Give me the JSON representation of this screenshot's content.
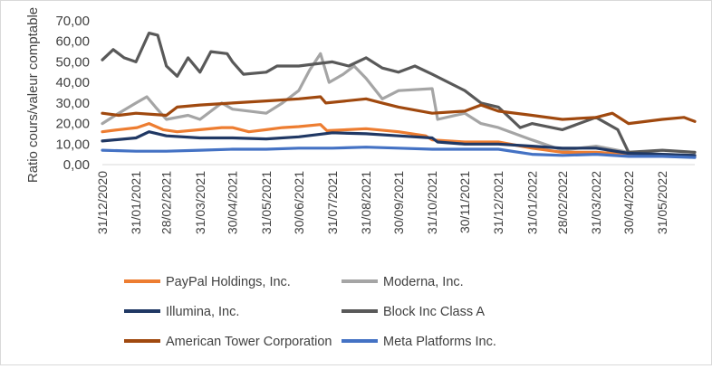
{
  "chart_data": {
    "type": "line",
    "title": "",
    "xlabel": "",
    "ylabel": "Ratio cours/valeur comptable",
    "ylim": [
      0,
      70
    ],
    "yticks": [
      "0,00",
      "10,00",
      "20,00",
      "30,00",
      "40,00",
      "50,00",
      "60,00",
      "70,00"
    ],
    "xlim": [
      "31/12/2020",
      "30/06/2022"
    ],
    "xticks": [
      "31/12/2020",
      "31/01/2021",
      "28/02/2021",
      "31/03/2021",
      "30/04/2021",
      "31/05/2021",
      "30/06/2021",
      "31/07/2021",
      "31/08/2021",
      "30/09/2021",
      "31/10/2021",
      "30/11/2021",
      "31/12/2021",
      "31/01/2022",
      "28/02/2022",
      "31/03/2022",
      "30/04/2022",
      "31/05/2022"
    ],
    "grid": "none",
    "legend": "bottom",
    "series": [
      {
        "name": "PayPal Holdings, Inc.",
        "color": "#ed7d31",
        "points": [
          [
            "31/12/2020",
            16
          ],
          [
            "15/01/2021",
            17
          ],
          [
            "01/02/2021",
            18
          ],
          [
            "12/02/2021",
            20
          ],
          [
            "25/02/2021",
            17
          ],
          [
            "10/03/2021",
            16
          ],
          [
            "31/03/2021",
            17
          ],
          [
            "20/04/2021",
            18
          ],
          [
            "30/04/2021",
            18
          ],
          [
            "15/05/2021",
            16
          ],
          [
            "31/05/2021",
            17
          ],
          [
            "15/06/2021",
            18
          ],
          [
            "30/06/2021",
            18.5
          ],
          [
            "20/07/2021",
            19.5
          ],
          [
            "26/07/2021",
            16.5
          ],
          [
            "31/08/2021",
            17.5
          ],
          [
            "30/09/2021",
            16
          ],
          [
            "25/10/2021",
            14
          ],
          [
            "31/10/2021",
            12
          ],
          [
            "30/11/2021",
            11
          ],
          [
            "31/12/2021",
            11
          ],
          [
            "31/01/2022",
            8
          ],
          [
            "28/02/2022",
            6
          ],
          [
            "31/03/2022",
            6
          ],
          [
            "30/04/2022",
            5
          ],
          [
            "31/05/2022",
            4.5
          ],
          [
            "30/06/2022",
            4
          ]
        ]
      },
      {
        "name": "Moderna, Inc.",
        "color": "#a5a5a5",
        "points": [
          [
            "31/12/2020",
            20
          ],
          [
            "15/01/2021",
            25
          ],
          [
            "31/01/2021",
            30
          ],
          [
            "10/02/2021",
            33
          ],
          [
            "18/02/2021",
            28
          ],
          [
            "28/02/2021",
            22
          ],
          [
            "20/03/2021",
            24
          ],
          [
            "31/03/2021",
            22
          ],
          [
            "20/04/2021",
            30
          ],
          [
            "30/04/2021",
            27
          ],
          [
            "31/05/2021",
            25
          ],
          [
            "15/06/2021",
            30
          ],
          [
            "30/06/2021",
            36
          ],
          [
            "10/07/2021",
            46
          ],
          [
            "20/07/2021",
            54
          ],
          [
            "28/07/2021",
            40
          ],
          [
            "10/08/2021",
            44
          ],
          [
            "20/08/2021",
            48
          ],
          [
            "31/08/2021",
            42
          ],
          [
            "15/09/2021",
            32
          ],
          [
            "30/09/2021",
            36
          ],
          [
            "31/10/2021",
            37
          ],
          [
            "05/11/2021",
            22
          ],
          [
            "30/11/2021",
            25
          ],
          [
            "15/12/2021",
            20
          ],
          [
            "31/12/2021",
            18
          ],
          [
            "31/01/2022",
            12
          ],
          [
            "28/02/2022",
            7
          ],
          [
            "31/03/2022",
            9
          ],
          [
            "30/04/2022",
            6
          ],
          [
            "31/05/2022",
            5
          ],
          [
            "30/06/2022",
            4.5
          ]
        ]
      },
      {
        "name": "Illumina, Inc.",
        "color": "#203864",
        "points": [
          [
            "31/12/2020",
            11.5
          ],
          [
            "31/01/2021",
            13
          ],
          [
            "12/02/2021",
            16
          ],
          [
            "28/02/2021",
            14
          ],
          [
            "31/03/2021",
            13
          ],
          [
            "30/04/2021",
            13
          ],
          [
            "31/05/2021",
            12.5
          ],
          [
            "30/06/2021",
            13.5
          ],
          [
            "31/07/2021",
            15.5
          ],
          [
            "31/08/2021",
            15
          ],
          [
            "30/09/2021",
            14
          ],
          [
            "31/10/2021",
            13
          ],
          [
            "05/11/2021",
            11
          ],
          [
            "30/11/2021",
            10
          ],
          [
            "31/12/2021",
            10
          ],
          [
            "31/01/2022",
            9
          ],
          [
            "28/02/2022",
            8
          ],
          [
            "31/03/2022",
            8
          ],
          [
            "30/04/2022",
            5.5
          ],
          [
            "31/05/2022",
            5
          ],
          [
            "30/06/2022",
            4.5
          ]
        ]
      },
      {
        "name": "Block Inc Class A",
        "color": "#595959",
        "points": [
          [
            "31/12/2020",
            51
          ],
          [
            "10/01/2021",
            56
          ],
          [
            "20/01/2021",
            52
          ],
          [
            "31/01/2021",
            50
          ],
          [
            "12/02/2021",
            64
          ],
          [
            "20/02/2021",
            63
          ],
          [
            "28/02/2021",
            48
          ],
          [
            "10/03/2021",
            43
          ],
          [
            "20/03/2021",
            52
          ],
          [
            "31/03/2021",
            45
          ],
          [
            "10/04/2021",
            55
          ],
          [
            "25/04/2021",
            54
          ],
          [
            "30/04/2021",
            50
          ],
          [
            "10/05/2021",
            44
          ],
          [
            "31/05/2021",
            45
          ],
          [
            "10/06/2021",
            48
          ],
          [
            "30/06/2021",
            48
          ],
          [
            "31/07/2021",
            50
          ],
          [
            "15/08/2021",
            48
          ],
          [
            "31/08/2021",
            52
          ],
          [
            "15/09/2021",
            47
          ],
          [
            "30/09/2021",
            45
          ],
          [
            "15/10/2021",
            48
          ],
          [
            "31/10/2021",
            44
          ],
          [
            "30/11/2021",
            36
          ],
          [
            "15/12/2021",
            30
          ],
          [
            "31/12/2021",
            28
          ],
          [
            "20/01/2022",
            18
          ],
          [
            "31/01/2022",
            20
          ],
          [
            "28/02/2022",
            17
          ],
          [
            "31/03/2022",
            23
          ],
          [
            "20/04/2022",
            17
          ],
          [
            "30/04/2022",
            6
          ],
          [
            "31/05/2022",
            7
          ],
          [
            "30/06/2022",
            6
          ]
        ]
      },
      {
        "name": "American Tower Corporation",
        "color": "#a0490f",
        "points": [
          [
            "31/12/2020",
            25
          ],
          [
            "15/01/2021",
            24
          ],
          [
            "31/01/2021",
            25
          ],
          [
            "28/02/2021",
            24
          ],
          [
            "10/03/2021",
            28
          ],
          [
            "31/03/2021",
            29
          ],
          [
            "30/04/2021",
            30
          ],
          [
            "31/05/2021",
            31
          ],
          [
            "30/06/2021",
            32
          ],
          [
            "20/07/2021",
            33
          ],
          [
            "25/07/2021",
            30
          ],
          [
            "31/08/2021",
            32
          ],
          [
            "15/09/2021",
            30
          ],
          [
            "30/09/2021",
            28
          ],
          [
            "31/10/2021",
            25
          ],
          [
            "30/11/2021",
            26
          ],
          [
            "15/12/2021",
            29
          ],
          [
            "31/12/2021",
            26
          ],
          [
            "31/01/2022",
            24
          ],
          [
            "28/02/2022",
            22
          ],
          [
            "31/03/2022",
            23
          ],
          [
            "15/04/2022",
            25
          ],
          [
            "30/04/2022",
            20
          ],
          [
            "31/05/2022",
            22
          ],
          [
            "20/06/2022",
            23
          ],
          [
            "30/06/2022",
            21
          ]
        ]
      },
      {
        "name": "Meta Platforms Inc.",
        "color": "#4472c4",
        "points": [
          [
            "31/12/2020",
            7
          ],
          [
            "31/01/2021",
            6.5
          ],
          [
            "28/02/2021",
            6.5
          ],
          [
            "31/03/2021",
            7
          ],
          [
            "30/04/2021",
            7.5
          ],
          [
            "31/05/2021",
            7.5
          ],
          [
            "30/06/2021",
            8
          ],
          [
            "31/07/2021",
            8
          ],
          [
            "31/08/2021",
            8.5
          ],
          [
            "30/09/2021",
            8
          ],
          [
            "31/10/2021",
            7.5
          ],
          [
            "30/11/2021",
            7.5
          ],
          [
            "31/12/2021",
            7.5
          ],
          [
            "31/01/2022",
            5
          ],
          [
            "28/02/2022",
            4.5
          ],
          [
            "31/03/2022",
            5
          ],
          [
            "30/04/2022",
            4
          ],
          [
            "31/05/2022",
            4
          ],
          [
            "30/06/2022",
            3.5
          ]
        ]
      }
    ]
  }
}
